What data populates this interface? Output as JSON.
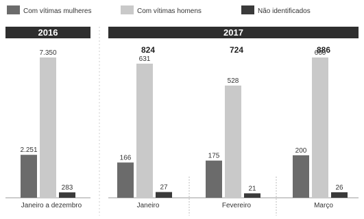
{
  "chart_data": {
    "type": "bar",
    "legend": {
      "placement": "top",
      "items": [
        {
          "label": "Com vítimas mulheres",
          "color": "#6b6b6b"
        },
        {
          "label": "Com vítimas homens",
          "color": "#c9c9c9"
        },
        {
          "label": "Não identificados",
          "color": "#3a3a3a"
        }
      ]
    },
    "panels": [
      {
        "header": "2016",
        "groups": [
          {
            "category": "Janeiro a dezembro",
            "total": "",
            "values": [
              2251,
              7350,
              283
            ],
            "labels": [
              "2.251",
              "7.350",
              "283"
            ]
          }
        ]
      },
      {
        "header": "2017",
        "groups": [
          {
            "category": "Janeiro",
            "total": "824",
            "values": [
              166,
              631,
              27
            ],
            "labels": [
              "166",
              "631",
              "27"
            ]
          },
          {
            "category": "Fevereiro",
            "total": "724",
            "values": [
              175,
              528,
              21
            ],
            "labels": [
              "175",
              "528",
              "21"
            ]
          },
          {
            "category": "Março",
            "total": "886",
            "values": [
              200,
              660,
              26
            ],
            "labels": [
              "200",
              "660",
              "26"
            ]
          }
        ]
      }
    ],
    "colors": {
      "header_bg": "#2e2e2e",
      "header_text": "#ffffff"
    }
  }
}
